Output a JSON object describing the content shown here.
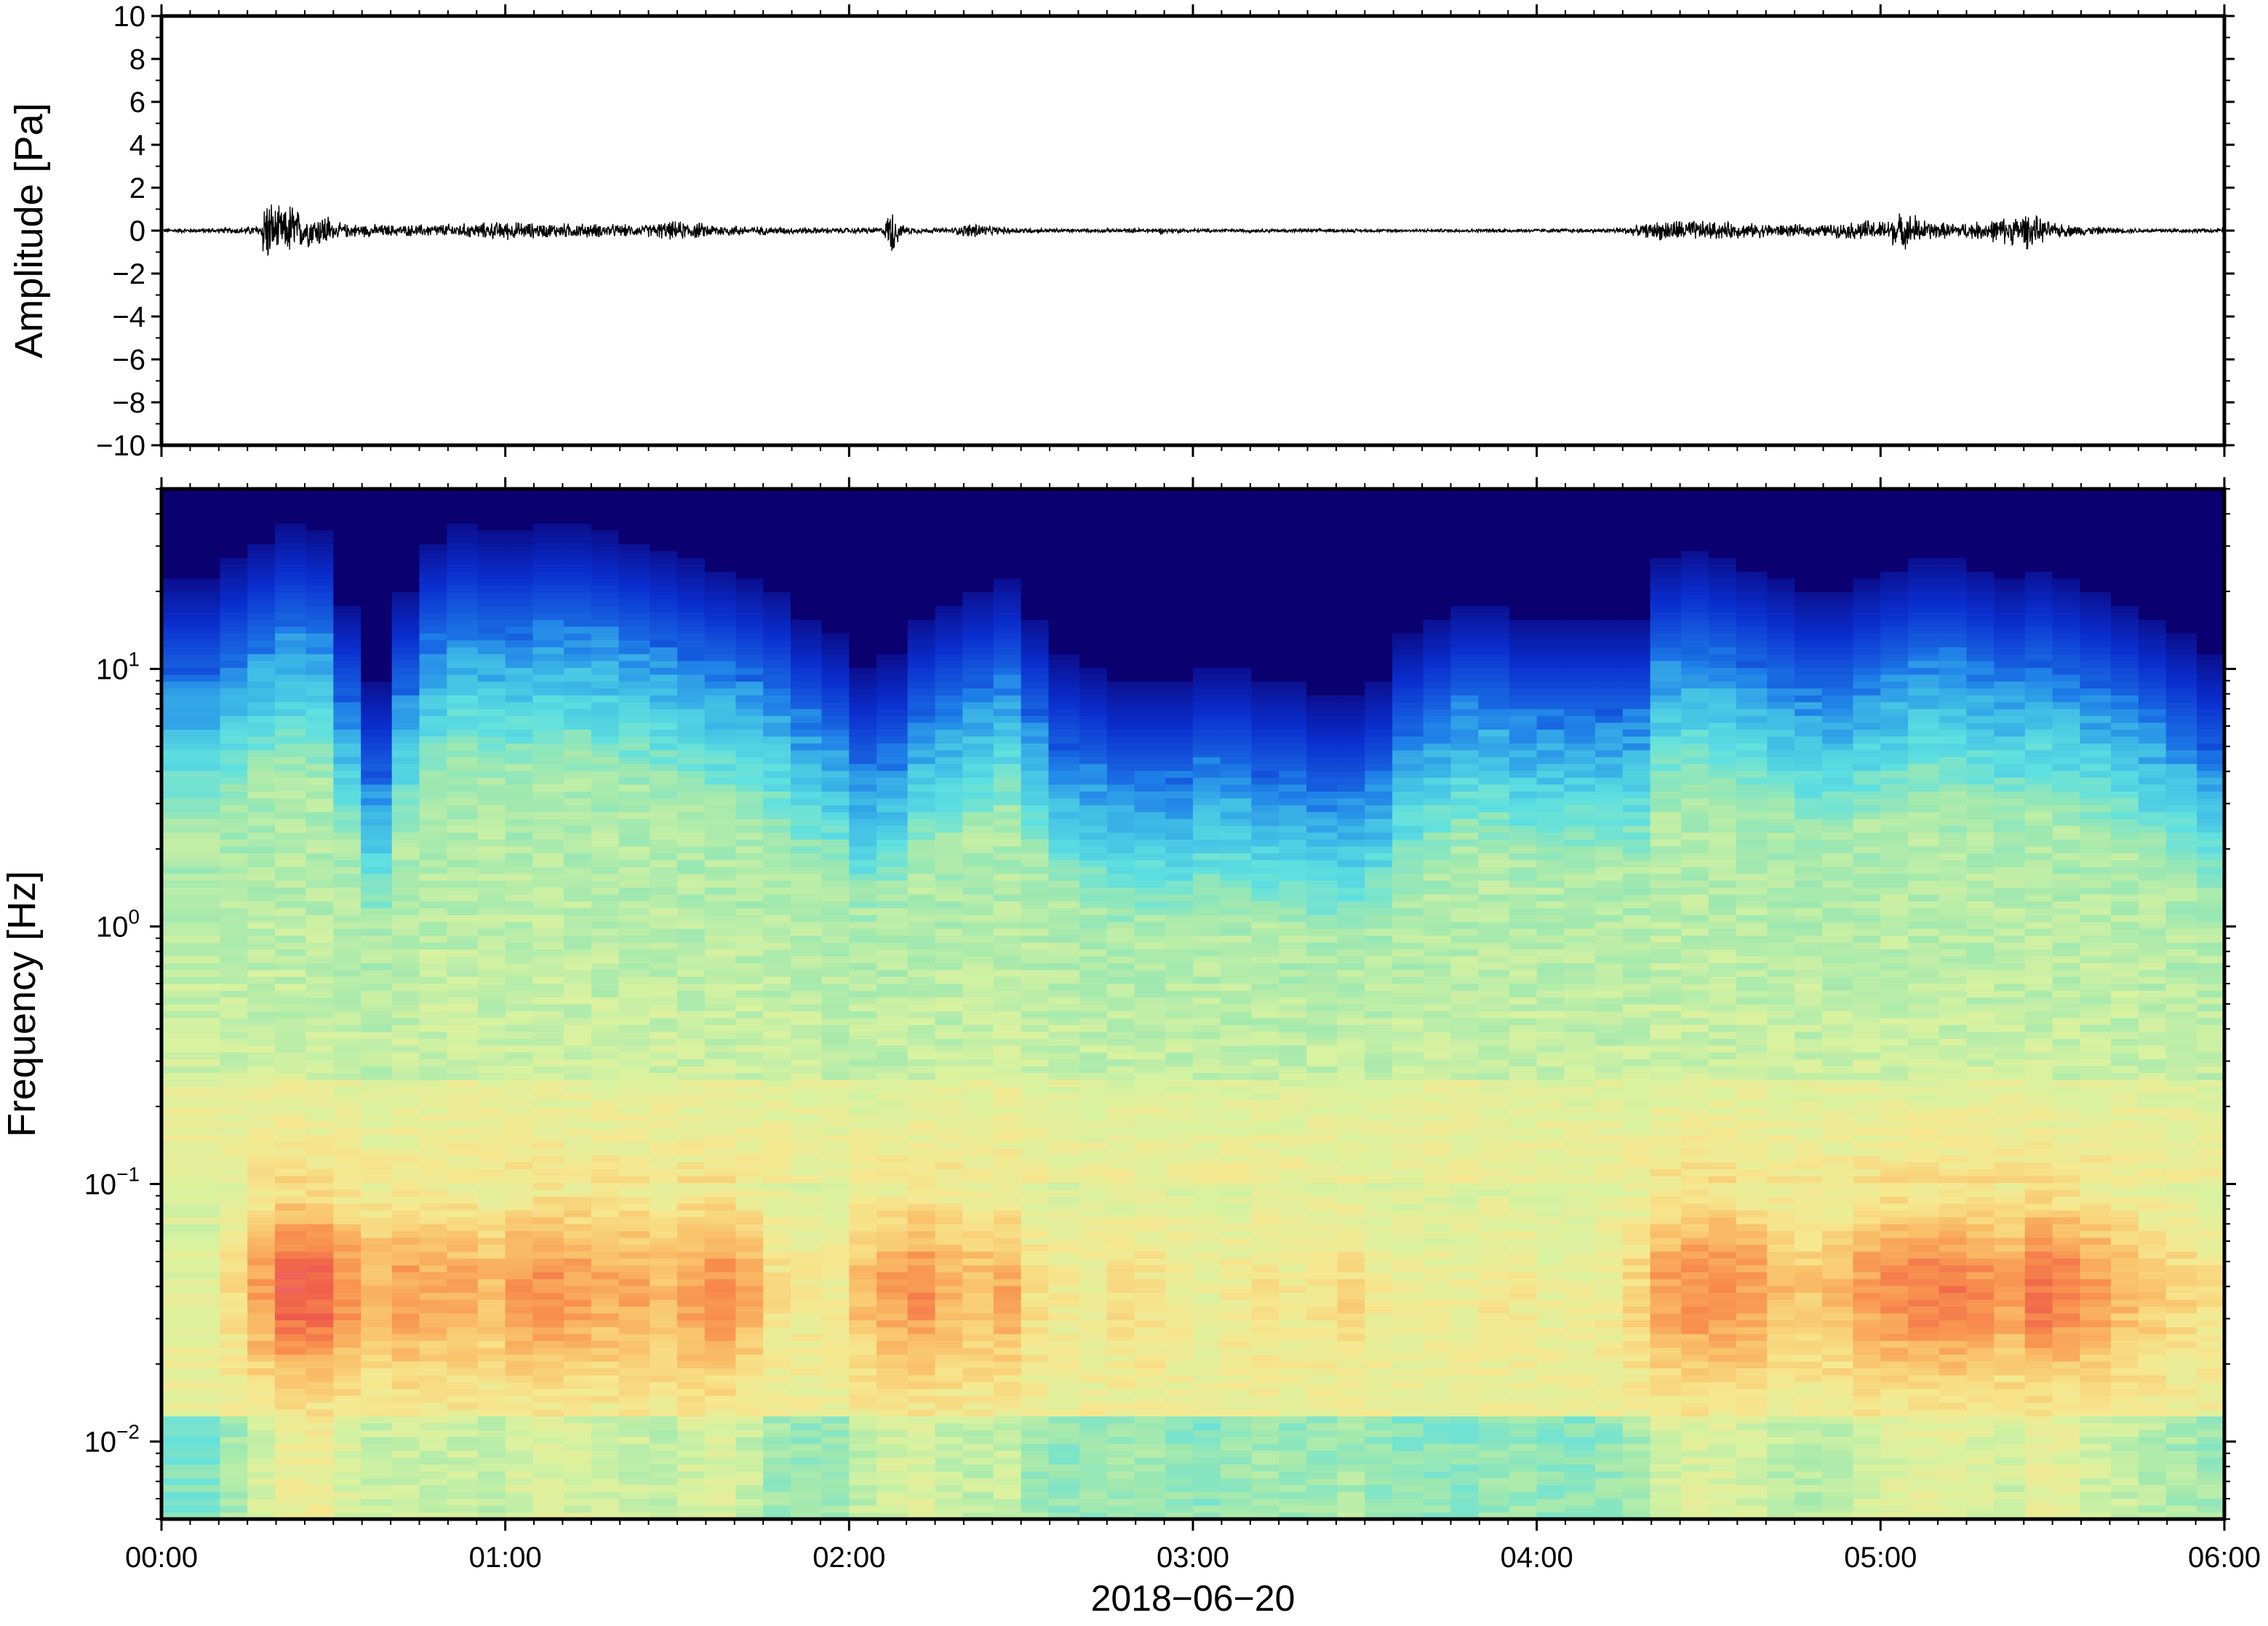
{
  "chart_data": [
    {
      "type": "line",
      "ylabel": "Amplitude [Pa]",
      "ylim": [
        -10,
        10
      ],
      "yticks": [
        10,
        8,
        6,
        4,
        2,
        0,
        -2,
        -4,
        -6,
        -8,
        -10
      ],
      "ytick_labels": [
        "10",
        "8",
        "6",
        "4",
        "2",
        "0",
        "−2",
        "−4",
        "−6",
        "−8",
        "−10"
      ],
      "xlim": [
        "00:00",
        "06:00"
      ],
      "grid": false,
      "series": [
        {
          "x_hours": [
            0.0,
            0.1,
            0.2,
            0.29,
            0.3,
            0.31,
            0.33,
            0.36,
            0.38,
            0.4,
            0.42,
            0.45,
            0.48,
            0.5,
            0.6,
            0.7,
            0.8,
            0.9,
            1.0,
            1.1,
            1.2,
            1.3,
            1.4,
            1.45,
            1.5,
            1.55,
            1.6,
            1.7,
            1.8,
            1.9,
            2.0,
            2.1,
            2.125,
            2.15,
            2.2,
            2.3,
            2.37,
            2.4,
            2.5,
            2.6,
            2.7,
            2.8,
            2.9,
            3.0,
            3.2,
            3.4,
            3.6,
            3.8,
            4.0,
            4.2,
            4.3,
            4.35,
            4.4,
            4.45,
            4.5,
            4.6,
            4.7,
            4.8,
            4.9,
            4.95,
            5.0,
            5.05,
            5.1,
            5.12,
            5.15,
            5.2,
            5.3,
            5.35,
            5.4,
            5.42,
            5.45,
            5.5,
            5.6,
            5.7,
            5.8,
            5.9,
            6.0
          ],
          "envelope_pa": [
            0.12,
            0.12,
            0.15,
            0.3,
            2.2,
            1.8,
            1.3,
            1.1,
            1.7,
            1.0,
            0.9,
            0.8,
            1.0,
            0.4,
            0.35,
            0.3,
            0.35,
            0.4,
            0.5,
            0.4,
            0.4,
            0.35,
            0.3,
            0.45,
            0.5,
            0.45,
            0.35,
            0.25,
            0.2,
            0.18,
            0.15,
            0.2,
            1.4,
            0.3,
            0.15,
            0.15,
            0.5,
            0.25,
            0.15,
            0.12,
            0.1,
            0.12,
            0.15,
            0.1,
            0.1,
            0.1,
            0.08,
            0.1,
            0.1,
            0.12,
            0.3,
            0.5,
            0.6,
            0.55,
            0.5,
            0.4,
            0.35,
            0.3,
            0.4,
            0.6,
            0.5,
            0.9,
            0.9,
            0.6,
            0.5,
            0.4,
            0.5,
            0.7,
            0.8,
            1.0,
            0.8,
            0.4,
            0.25,
            0.15,
            0.12,
            0.12,
            0.12
          ]
        }
      ]
    },
    {
      "type": "heatmap",
      "ylabel": "Frequency [Hz]",
      "xlabel": "2018−06−20",
      "yscale": "log",
      "ylim": [
        0.005,
        50
      ],
      "yticks": [
        0.01,
        0.1,
        1,
        10
      ],
      "ytick_labels": [
        {
          "base": "10",
          "exp": "−2"
        },
        {
          "base": "10",
          "exp": "−1"
        },
        {
          "base": "10",
          "exp": "0"
        },
        {
          "base": "10",
          "exp": "1"
        }
      ],
      "xticks": [
        "00:00",
        "01:00",
        "02:00",
        "03:00",
        "04:00",
        "05:00",
        "06:00"
      ],
      "xlim": [
        "00:00",
        "06:00"
      ],
      "grid": false,
      "colormap": [
        "#0b0070",
        "#0a2fd0",
        "#1e7fe8",
        "#3fbbe6",
        "#5fe0e0",
        "#9ee8b0",
        "#d8f2a0",
        "#f6e890",
        "#f9c16a",
        "#f88f4e",
        "#ee5a4a",
        "#f77a8a"
      ],
      "time_hours": [
        0.0,
        0.17,
        0.25,
        0.33,
        0.42,
        0.5,
        0.58,
        0.67,
        0.75,
        0.83,
        0.92,
        1.0,
        1.08,
        1.17,
        1.25,
        1.33,
        1.42,
        1.5,
        1.58,
        1.67,
        1.75,
        1.83,
        1.92,
        2.0,
        2.08,
        2.17,
        2.25,
        2.33,
        2.42,
        2.5,
        2.58,
        2.67,
        2.75,
        2.83,
        2.92,
        3.0,
        3.08,
        3.17,
        3.25,
        3.33,
        3.42,
        3.5,
        3.58,
        3.67,
        3.75,
        3.83,
        3.92,
        4.0,
        4.08,
        4.17,
        4.25,
        4.33,
        4.42,
        4.5,
        4.58,
        4.67,
        4.75,
        4.83,
        4.92,
        5.0,
        5.08,
        5.17,
        5.25,
        5.33,
        5.42,
        5.5,
        5.58,
        5.67,
        5.75,
        5.83,
        5.92,
        6.0
      ],
      "low_freq_activity": [
        0.35,
        0.5,
        0.75,
        0.95,
        0.95,
        0.8,
        0.7,
        0.75,
        0.7,
        0.7,
        0.65,
        0.75,
        0.8,
        0.75,
        0.7,
        0.7,
        0.65,
        0.75,
        0.8,
        0.7,
        0.5,
        0.45,
        0.45,
        0.65,
        0.75,
        0.8,
        0.7,
        0.65,
        0.7,
        0.5,
        0.45,
        0.45,
        0.5,
        0.5,
        0.45,
        0.4,
        0.45,
        0.5,
        0.45,
        0.5,
        0.55,
        0.45,
        0.4,
        0.4,
        0.4,
        0.45,
        0.45,
        0.4,
        0.4,
        0.45,
        0.55,
        0.75,
        0.8,
        0.8,
        0.75,
        0.65,
        0.6,
        0.65,
        0.75,
        0.8,
        0.85,
        0.85,
        0.8,
        0.75,
        0.9,
        0.85,
        0.75,
        0.65,
        0.6,
        0.55,
        0.5,
        0.5
      ],
      "upper_cutoff_hz": [
        10,
        12,
        14,
        16,
        15,
        8,
        4,
        9,
        14,
        16,
        15,
        15,
        16,
        16,
        15,
        14,
        13,
        12,
        11,
        10,
        9,
        7,
        6,
        4.5,
        5,
        7,
        8,
        9,
        10,
        7,
        5,
        4.5,
        4,
        4,
        4,
        4.5,
        4.5,
        4,
        4,
        3.5,
        3.5,
        4,
        6,
        7,
        8,
        8,
        7,
        7,
        7,
        7,
        7,
        12,
        13,
        12,
        11,
        10,
        9,
        9,
        10,
        11,
        12,
        12,
        11,
        10,
        11,
        10,
        9,
        8,
        7,
        6,
        5,
        5
      ]
    }
  ]
}
